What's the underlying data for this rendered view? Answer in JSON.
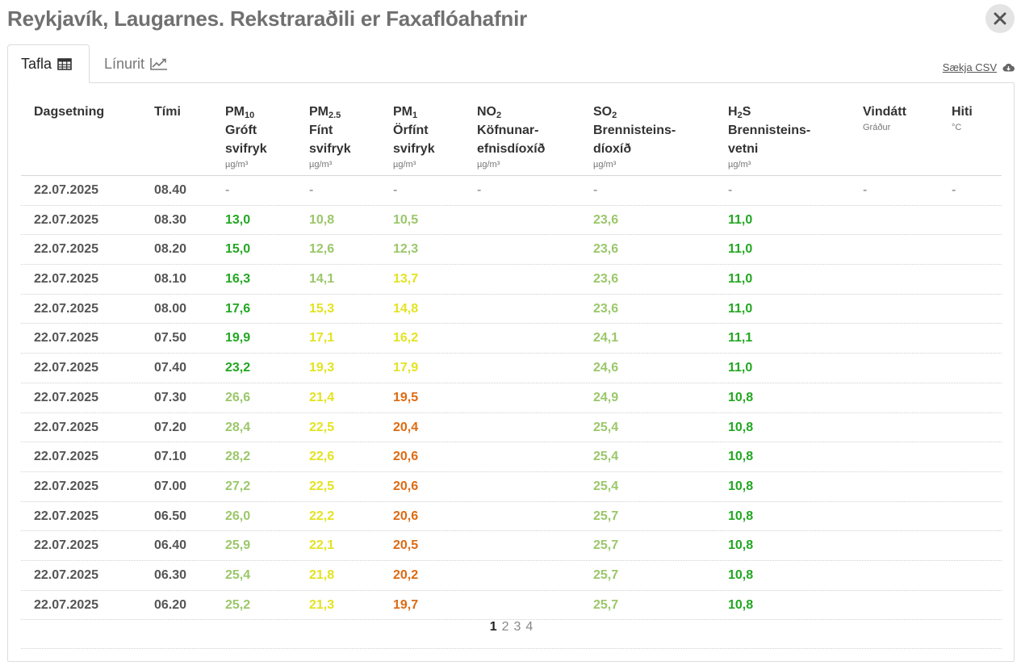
{
  "title": "Reykjavík, Laugarnes. Rekstraraðili er Faxaflóahafnir",
  "tabs": [
    {
      "label": "Tafla",
      "icon": "table-icon",
      "active": true
    },
    {
      "label": "Línurit",
      "icon": "line-chart-icon",
      "active": false
    }
  ],
  "download": {
    "label": "Sækja CSV",
    "icon": "cloud-download-icon"
  },
  "colors": {
    "good": "#22a722",
    "fair": "#9bc76a",
    "moderate": "#e3e322",
    "poor": "#dd6a12"
  },
  "columns": {
    "date": {
      "label": "Dagsetning"
    },
    "time": {
      "label": "Tími"
    },
    "pm10": {
      "main": "PM",
      "sub": "10",
      "line2": "Gróft",
      "line3": "svifryk",
      "unit": "µg/m³"
    },
    "pm25": {
      "main": "PM",
      "sub": "2.5",
      "line2": "Fínt",
      "line3": "svifryk",
      "unit": "µg/m³"
    },
    "pm1": {
      "main": "PM",
      "sub": "1",
      "line2": "Örfínt",
      "line3": "svifryk",
      "unit": "µg/m³"
    },
    "no2": {
      "main": "NO",
      "sub": "2",
      "line2": "Köfnunar-",
      "line3": "efnisdíoxíð",
      "unit": "µg/m³"
    },
    "so2": {
      "main": "SO",
      "sub": "2",
      "line2": "Brennisteins-",
      "line3": "díoxíð",
      "unit": "µg/m³"
    },
    "h2s": {
      "main": "H",
      "sub": "2",
      "tail": "S",
      "line2": "Brennisteins-",
      "line3": "vetni",
      "unit": "µg/m³"
    },
    "wind": {
      "label": "Vindátt",
      "unit": "Gráður"
    },
    "temp": {
      "label": "Hiti",
      "unit": "°C"
    }
  },
  "rows": [
    {
      "date": "22.07.2025",
      "time": "08.40",
      "pm10": "-",
      "pm25": "-",
      "pm1": "-",
      "no2": "-",
      "so2": "-",
      "h2s": "-",
      "wind": "-",
      "temp": "-"
    },
    {
      "date": "22.07.2025",
      "time": "08.30",
      "pm10": "13,0",
      "pm25": "10,8",
      "pm1": "10,5",
      "no2": "",
      "so2": "23,6",
      "h2s": "11,0",
      "wind": "",
      "temp": ""
    },
    {
      "date": "22.07.2025",
      "time": "08.20",
      "pm10": "15,0",
      "pm25": "12,6",
      "pm1": "12,3",
      "no2": "",
      "so2": "23,6",
      "h2s": "11,0",
      "wind": "",
      "temp": ""
    },
    {
      "date": "22.07.2025",
      "time": "08.10",
      "pm10": "16,3",
      "pm25": "14,1",
      "pm1": "13,7",
      "no2": "",
      "so2": "23,6",
      "h2s": "11,0",
      "wind": "",
      "temp": ""
    },
    {
      "date": "22.07.2025",
      "time": "08.00",
      "pm10": "17,6",
      "pm25": "15,3",
      "pm1": "14,8",
      "no2": "",
      "so2": "23,6",
      "h2s": "11,0",
      "wind": "",
      "temp": ""
    },
    {
      "date": "22.07.2025",
      "time": "07.50",
      "pm10": "19,9",
      "pm25": "17,1",
      "pm1": "16,2",
      "no2": "",
      "so2": "24,1",
      "h2s": "11,1",
      "wind": "",
      "temp": ""
    },
    {
      "date": "22.07.2025",
      "time": "07.40",
      "pm10": "23,2",
      "pm25": "19,3",
      "pm1": "17,9",
      "no2": "",
      "so2": "24,6",
      "h2s": "11,0",
      "wind": "",
      "temp": ""
    },
    {
      "date": "22.07.2025",
      "time": "07.30",
      "pm10": "26,6",
      "pm25": "21,4",
      "pm1": "19,5",
      "no2": "",
      "so2": "24,9",
      "h2s": "10,8",
      "wind": "",
      "temp": ""
    },
    {
      "date": "22.07.2025",
      "time": "07.20",
      "pm10": "28,4",
      "pm25": "22,5",
      "pm1": "20,4",
      "no2": "",
      "so2": "25,4",
      "h2s": "10,8",
      "wind": "",
      "temp": ""
    },
    {
      "date": "22.07.2025",
      "time": "07.10",
      "pm10": "28,2",
      "pm25": "22,6",
      "pm1": "20,6",
      "no2": "",
      "so2": "25,4",
      "h2s": "10,8",
      "wind": "",
      "temp": ""
    },
    {
      "date": "22.07.2025",
      "time": "07.00",
      "pm10": "27,2",
      "pm25": "22,5",
      "pm1": "20,6",
      "no2": "",
      "so2": "25,4",
      "h2s": "10,8",
      "wind": "",
      "temp": ""
    },
    {
      "date": "22.07.2025",
      "time": "06.50",
      "pm10": "26,0",
      "pm25": "22,2",
      "pm1": "20,6",
      "no2": "",
      "so2": "25,7",
      "h2s": "10,8",
      "wind": "",
      "temp": ""
    },
    {
      "date": "22.07.2025",
      "time": "06.40",
      "pm10": "25,9",
      "pm25": "22,1",
      "pm1": "20,5",
      "no2": "",
      "so2": "25,7",
      "h2s": "10,8",
      "wind": "",
      "temp": ""
    },
    {
      "date": "22.07.2025",
      "time": "06.30",
      "pm10": "25,4",
      "pm25": "21,8",
      "pm1": "20,2",
      "no2": "",
      "so2": "25,7",
      "h2s": "10,8",
      "wind": "",
      "temp": ""
    },
    {
      "date": "22.07.2025",
      "time": "06.20",
      "pm10": "25,2",
      "pm25": "21,3",
      "pm1": "19,7",
      "no2": "",
      "so2": "25,7",
      "h2s": "10,8",
      "wind": "",
      "temp": ""
    }
  ],
  "pagination": {
    "pages": [
      "1",
      "2",
      "3",
      "4"
    ],
    "current": "1"
  }
}
